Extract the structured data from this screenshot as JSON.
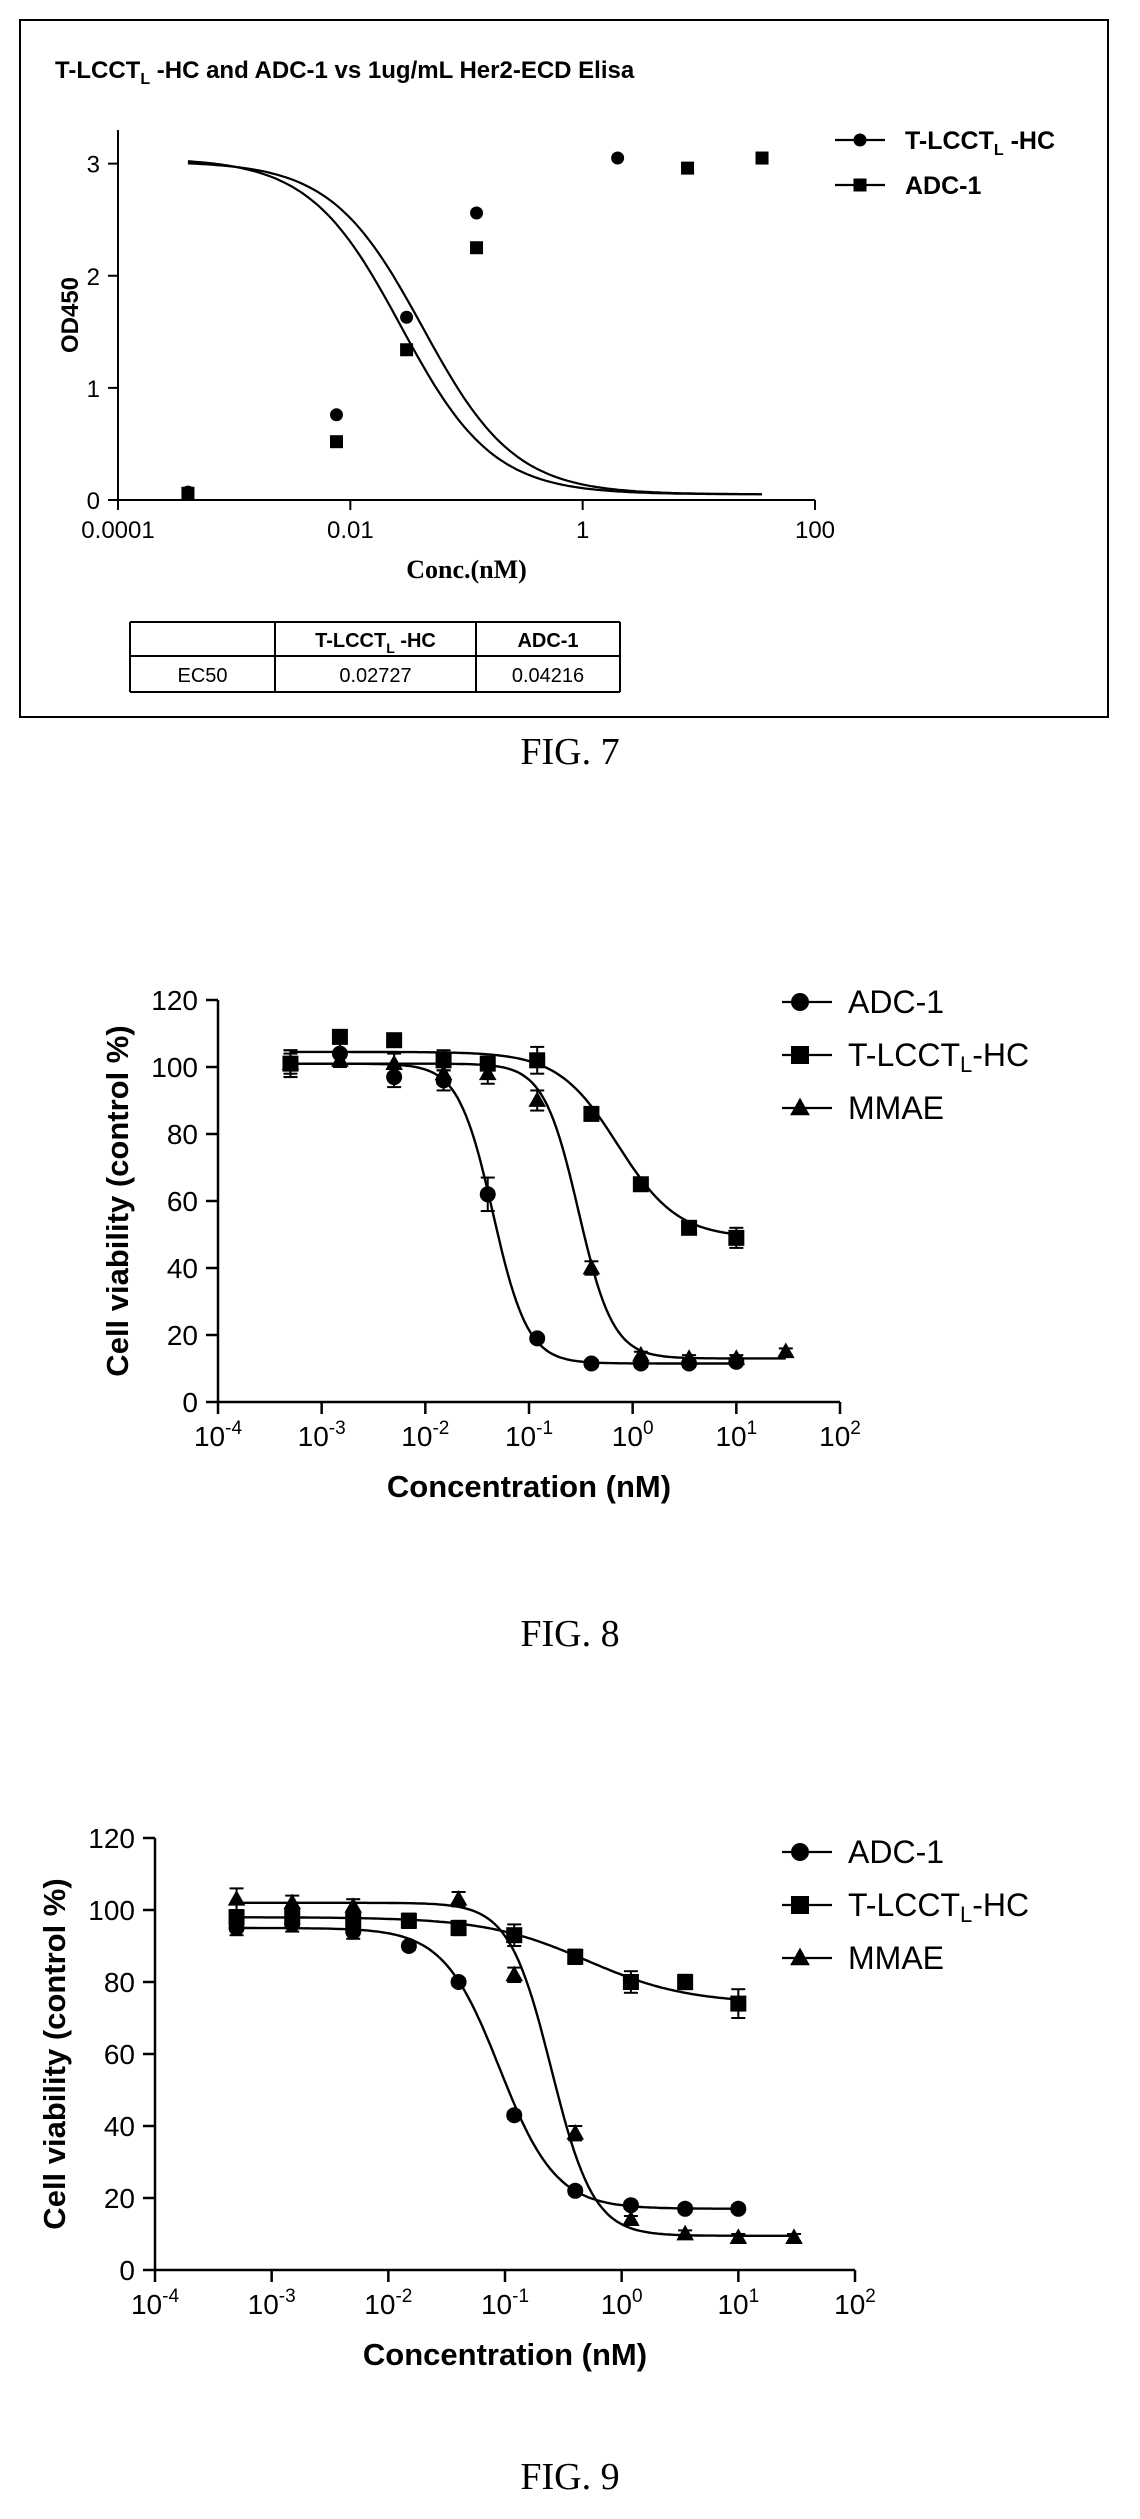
{
  "figures": [
    {
      "caption": "FIG. 7",
      "legend_entries": [
        {
          "base": "T-LCCT",
          "sub": "L",
          "rest": " -HC",
          "marker": "circle"
        },
        {
          "base": "ADC-1",
          "sub": "",
          "rest": "",
          "marker": "square"
        }
      ],
      "table": {
        "headers": [
          "",
          "T-LCCT",
          "ADC-1"
        ],
        "header_sub": "L",
        "header_rest": " -HC",
        "rows": [
          [
            "EC50",
            "0.02727",
            "0.04216"
          ]
        ]
      }
    },
    {
      "caption": "FIG. 8",
      "legend_entries": [
        {
          "base": "ADC-1",
          "sub": "",
          "rest": "",
          "marker": "circle"
        },
        {
          "base": "T-LCCT",
          "sub": "L",
          "rest": "-HC",
          "marker": "square"
        },
        {
          "base": "MMAE",
          "sub": "",
          "rest": "",
          "marker": "triangle"
        }
      ]
    },
    {
      "caption": "FIG. 9",
      "legend_entries": [
        {
          "base": "ADC-1",
          "sub": "",
          "rest": "",
          "marker": "circle"
        },
        {
          "base": "T-LCCT",
          "sub": "L",
          "rest": "-HC",
          "marker": "square"
        },
        {
          "base": "MMAE",
          "sub": "",
          "rest": "",
          "marker": "triangle"
        }
      ]
    }
  ],
  "chart_data": [
    {
      "type": "scatter",
      "title": "T-LCCT_L -HC and ADC-1 vs 1ug/mL Her2-ECD Elisa",
      "title_parts": [
        "T-LCCT",
        "L",
        " -HC and ADC-1 vs 1ug/mL Her2-ECD Elisa"
      ],
      "xlabel": "Conc.(nM)",
      "ylabel": "OD450",
      "xscale": "log",
      "xlim": [
        0.0001,
        100
      ],
      "ylim": [
        0,
        3.3
      ],
      "x_ticks": [
        0.0001,
        0.01,
        1,
        100
      ],
      "x_tick_labels": [
        "0.0001",
        "0.01",
        "1",
        "100"
      ],
      "y_ticks": [
        0,
        1,
        2,
        3
      ],
      "y_tick_labels": [
        "0",
        "1",
        "2",
        "3"
      ],
      "legend_position": "top-right",
      "series": [
        {
          "name": "T-LCCT_L -HC",
          "marker": "circle",
          "x": [
            0.0004,
            0.0076,
            0.0305,
            0.122,
            2.0,
            35.0
          ],
          "y": [
            0.07,
            0.76,
            1.63,
            2.56,
            3.05,
            3.05
          ],
          "fit": {
            "bottom": 0.05,
            "top": 3.05,
            "ec50": 0.02727,
            "hill": 1.1
          }
        },
        {
          "name": "ADC-1",
          "marker": "square",
          "x": [
            0.0004,
            0.0076,
            0.0305,
            0.122,
            8.0,
            35.0
          ],
          "y": [
            0.06,
            0.52,
            1.34,
            2.25,
            2.96,
            3.05
          ],
          "fit": {
            "bottom": 0.05,
            "top": 3.02,
            "ec50": 0.04216,
            "hill": 1.1
          }
        }
      ]
    },
    {
      "type": "scatter",
      "xlabel": "Concentration (nM)",
      "ylabel": "Cell viability (control %)",
      "xscale": "log",
      "xlim": [
        0.0001,
        100
      ],
      "ylim": [
        0,
        120
      ],
      "x_tick_exponents": [
        -4,
        -3,
        -2,
        -1,
        0,
        1,
        2
      ],
      "x_tick_base": "10",
      "y_ticks": [
        0,
        20,
        40,
        60,
        80,
        100,
        120
      ],
      "y_tick_labels": [
        "0",
        "20",
        "40",
        "60",
        "80",
        "100",
        "120"
      ],
      "legend_position": "top-right",
      "series": [
        {
          "name": "ADC-1",
          "marker": "circle",
          "x": [
            0.0005,
            0.0015,
            0.005,
            0.015,
            0.04,
            0.12,
            0.4,
            1.2,
            3.5,
            10
          ],
          "y": [
            101,
            104,
            97,
            96,
            62,
            19,
            11.5,
            11.5,
            11.5,
            12
          ],
          "err": [
            4,
            3,
            3,
            3,
            5,
            1,
            1,
            1,
            1,
            1
          ],
          "fit": {
            "bottom": 11.5,
            "top": 101,
            "ec50": 0.045,
            "hill": 2.6
          }
        },
        {
          "name": "T-LCCT_L-HC",
          "marker": "square",
          "x": [
            0.0005,
            0.0015,
            0.005,
            0.015,
            0.04,
            0.12,
            0.4,
            1.2,
            3.5,
            10
          ],
          "y": [
            101,
            109,
            108,
            102,
            101,
            102,
            86,
            65,
            52,
            49
          ],
          "err": [
            4,
            1,
            1,
            3,
            2,
            4,
            1,
            1,
            1,
            3
          ],
          "fit": {
            "bottom": 49,
            "top": 104.5,
            "ec50": 0.72,
            "hill": 1.5
          }
        },
        {
          "name": "MMAE",
          "marker": "triangle",
          "x": [
            0.0005,
            0.0015,
            0.005,
            0.015,
            0.04,
            0.12,
            0.4,
            1.2,
            3.5,
            10,
            30
          ],
          "y": [
            101,
            102,
            101,
            98,
            98,
            90,
            40,
            14,
            13,
            13,
            15
          ],
          "err": [
            3,
            2,
            3,
            3,
            3,
            3,
            2,
            1,
            1,
            1,
            1
          ],
          "fit": {
            "bottom": 13,
            "top": 101,
            "ec50": 0.3,
            "hill": 2.6
          }
        }
      ]
    },
    {
      "type": "scatter",
      "xlabel": "Concentration (nM)",
      "ylabel": "Cell viability (control %)",
      "xscale": "log",
      "xlim": [
        0.0001,
        100
      ],
      "ylim": [
        0,
        120
      ],
      "x_tick_exponents": [
        -4,
        -3,
        -2,
        -1,
        0,
        1,
        2
      ],
      "x_tick_base": "10",
      "y_ticks": [
        0,
        20,
        40,
        60,
        80,
        100,
        120
      ],
      "y_tick_labels": [
        "0",
        "20",
        "40",
        "60",
        "80",
        "100",
        "120"
      ],
      "legend_position": "top-right",
      "series": [
        {
          "name": "ADC-1",
          "marker": "circle",
          "x": [
            0.0005,
            0.0015,
            0.005,
            0.015,
            0.04,
            0.12,
            0.4,
            1.2,
            3.5,
            10
          ],
          "y": [
            95,
            96,
            94,
            90,
            80,
            43,
            22,
            18,
            17,
            17
          ],
          "err": [
            2,
            2,
            2,
            1,
            1,
            1,
            1,
            1,
            1,
            1
          ],
          "fit": {
            "bottom": 17,
            "top": 95,
            "ec50": 0.09,
            "hill": 1.8
          }
        },
        {
          "name": "T-LCCT_L-HC",
          "marker": "square",
          "x": [
            0.0005,
            0.0015,
            0.005,
            0.015,
            0.04,
            0.12,
            0.4,
            1.2,
            3.5,
            10
          ],
          "y": [
            98,
            98,
            97,
            97,
            95,
            93,
            87,
            80,
            80,
            74
          ],
          "err": [
            2,
            2,
            2,
            2,
            2,
            3,
            2,
            3,
            2,
            4
          ],
          "fit": {
            "bottom": 74,
            "top": 98,
            "ec50": 0.5,
            "hill": 1.0
          }
        },
        {
          "name": "MMAE",
          "marker": "triangle",
          "x": [
            0.0005,
            0.0015,
            0.005,
            0.04,
            0.12,
            0.4,
            1.2,
            3.5,
            10,
            30
          ],
          "y": [
            103,
            102,
            101,
            103,
            82,
            38,
            14,
            10,
            9,
            9
          ],
          "err": [
            3,
            2,
            2,
            2,
            2,
            2,
            1,
            1,
            1,
            1
          ],
          "fit": {
            "bottom": 9.5,
            "top": 102,
            "ec50": 0.25,
            "hill": 2.4
          }
        }
      ]
    }
  ]
}
